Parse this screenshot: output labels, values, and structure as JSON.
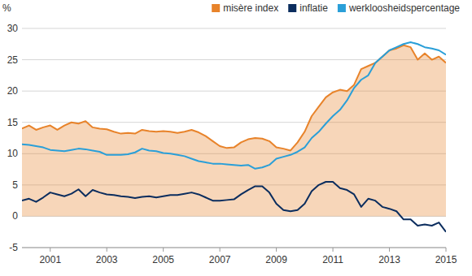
{
  "chart_data": {
    "type": "line",
    "ylabel": "%",
    "x": [
      2000,
      2000.25,
      2000.5,
      2000.75,
      2001,
      2001.25,
      2001.5,
      2001.75,
      2002,
      2002.25,
      2002.5,
      2002.75,
      2003,
      2003.25,
      2003.5,
      2003.75,
      2004,
      2004.25,
      2004.5,
      2004.75,
      2005,
      2005.25,
      2005.5,
      2005.75,
      2006,
      2006.25,
      2006.5,
      2006.75,
      2007,
      2007.25,
      2007.5,
      2007.75,
      2008,
      2008.25,
      2008.5,
      2008.75,
      2009,
      2009.25,
      2009.5,
      2009.75,
      2010,
      2010.25,
      2010.5,
      2010.75,
      2011,
      2011.25,
      2011.5,
      2011.75,
      2012,
      2012.25,
      2012.5,
      2012.75,
      2013,
      2013.25,
      2013.5,
      2013.75,
      2014,
      2014.25,
      2014.5,
      2014.75,
      2015
    ],
    "series": [
      {
        "name": "misère index",
        "color": "#e8832a",
        "type": "area",
        "values": [
          14,
          14.5,
          13.8,
          14.2,
          14.5,
          13.8,
          14.5,
          15,
          14.8,
          15.2,
          14.2,
          14,
          13.9,
          13.5,
          13.2,
          13.3,
          13.2,
          13.8,
          13.6,
          13.5,
          13.6,
          13.5,
          13.3,
          13.5,
          13.8,
          13.4,
          12.8,
          12,
          11.2,
          10.9,
          11,
          11.8,
          12.3,
          12.5,
          12.4,
          12,
          11,
          10.8,
          10.5,
          11.8,
          13.5,
          16,
          17.5,
          19,
          19.8,
          20.2,
          20,
          21,
          23.5,
          24,
          24.5,
          25.5,
          26.5,
          26.8,
          27.3,
          27,
          25,
          26,
          25,
          25.5,
          24.5
        ]
      },
      {
        "name": "inflatie",
        "color": "#0b2d5e",
        "type": "line",
        "values": [
          2.5,
          2.8,
          2.3,
          3,
          3.8,
          3.5,
          3.2,
          3.6,
          4.3,
          3.2,
          4.2,
          3.8,
          3.5,
          3.4,
          3.2,
          3.1,
          2.9,
          3.1,
          3.2,
          3,
          3.2,
          3.4,
          3.4,
          3.6,
          3.8,
          3.5,
          3,
          2.5,
          2.5,
          2.6,
          2.7,
          3.5,
          4.2,
          4.8,
          4.8,
          3.8,
          2,
          1,
          0.8,
          1,
          2,
          4,
          5,
          5.5,
          5.5,
          4.5,
          4.2,
          3.5,
          1.5,
          2.8,
          2.5,
          1.5,
          1.2,
          0.8,
          -0.5,
          -0.5,
          -1.5,
          -1.3,
          -1.5,
          -1,
          -2.5
        ]
      },
      {
        "name": "werkloosheidspercentage",
        "color": "#2a9fd8",
        "type": "line",
        "values": [
          11.5,
          11.4,
          11.2,
          11,
          10.6,
          10.5,
          10.4,
          10.6,
          10.8,
          10.7,
          10.5,
          10.3,
          9.8,
          9.8,
          9.8,
          9.9,
          10.2,
          10.8,
          10.5,
          10.4,
          10.1,
          10,
          9.8,
          9.6,
          9.2,
          8.8,
          8.6,
          8.4,
          8.4,
          8.3,
          8.2,
          8.1,
          8.2,
          7.6,
          7.8,
          8.2,
          9.2,
          9.5,
          9.8,
          10.3,
          11,
          12.5,
          13.5,
          14.8,
          16,
          17,
          18.5,
          20.5,
          21.8,
          22.5,
          24.5,
          25.5,
          26.5,
          27,
          27.5,
          27.8,
          27.5,
          27,
          26.8,
          26.5,
          25.8
        ]
      }
    ],
    "xlim": [
      2000,
      2015
    ],
    "xticks": [
      2001,
      2003,
      2005,
      2007,
      2009,
      2011,
      2013,
      2015
    ],
    "ylim": [
      -5,
      30
    ],
    "yticks": [
      -5,
      0,
      5,
      10,
      15,
      20,
      25,
      30
    ],
    "grid": true,
    "legend": "top-right"
  }
}
